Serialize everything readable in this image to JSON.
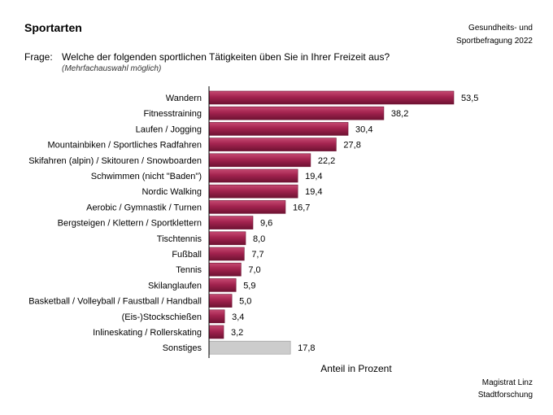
{
  "header": {
    "title": "Sportarten",
    "source_top": [
      "Gesundheits- und",
      "Sportbefragung 2022"
    ],
    "question_label": "Frage:",
    "question_text": "Welche der folgenden sportlichen Tätigkeiten üben Sie in Ihrer Freizeit aus?",
    "question_note": "(Mehrfachauswahl möglich)"
  },
  "footer": {
    "source_bottom": [
      "Magistrat Linz",
      "Stadtforschung"
    ]
  },
  "chart_data": {
    "type": "bar",
    "orientation": "horizontal",
    "categories": [
      "Wandern",
      "Fitnesstraining",
      "Laufen / Jogging",
      "Mountainbiken / Sportliches Radfahren",
      "Skifahren (alpin) / Skitouren / Snowboarden",
      "Schwimmen (nicht \"Baden\")",
      "Nordic Walking",
      "Aerobic / Gymnastik / Turnen",
      "Bergsteigen / Klettern / Sportklettern",
      "Tischtennis",
      "Fußball",
      "Tennis",
      "Skilanglaufen",
      "Basketball / Volleyball / Faustball / Handball",
      "(Eis-)Stockschießen",
      "Inlineskating / Rollerskating",
      "Sonstiges"
    ],
    "values": [
      53.5,
      38.2,
      30.4,
      27.8,
      22.2,
      19.4,
      19.4,
      16.7,
      9.6,
      8.0,
      7.7,
      7.0,
      5.9,
      5.0,
      3.4,
      3.2,
      17.8
    ],
    "value_labels": [
      "53,5",
      "38,2",
      "30,4",
      "27,8",
      "22,2",
      "19,4",
      "19,4",
      "16,7",
      "9,6",
      "8,0",
      "7,7",
      "7,0",
      "5,9",
      "5,0",
      "3,4",
      "3,2",
      "17,8"
    ],
    "xlabel": "Anteil in Prozent",
    "xlim": [
      0,
      60
    ],
    "grid": false,
    "colors": {
      "main": "#a3234f",
      "main_dark": "#6e1232",
      "main_light": "#c64a73",
      "other": "#cccccc",
      "other_border": "#999999"
    },
    "highlight_gray": [
      "Sonstiges"
    ]
  }
}
